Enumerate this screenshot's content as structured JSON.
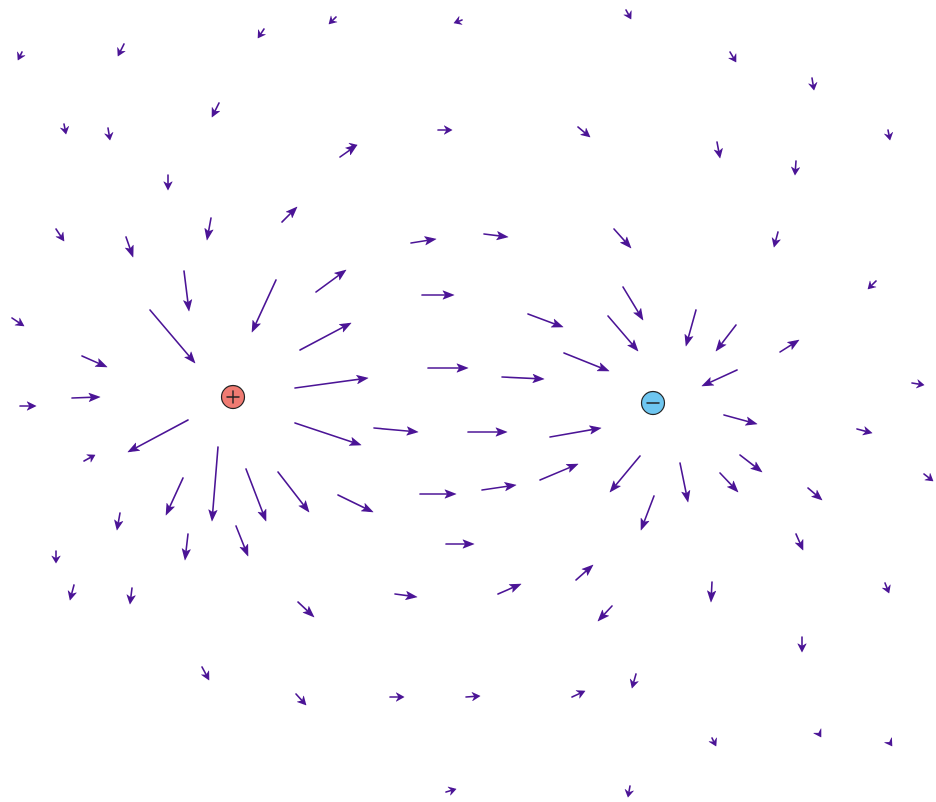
{
  "charges": [
    {
      "name": "positive-charge",
      "sign": "+",
      "color": "#f07b72"
    },
    {
      "name": "negative-charge",
      "sign": "-",
      "color": "#6ec6f0"
    }
  ],
  "arrow_color": "#4b1496"
}
